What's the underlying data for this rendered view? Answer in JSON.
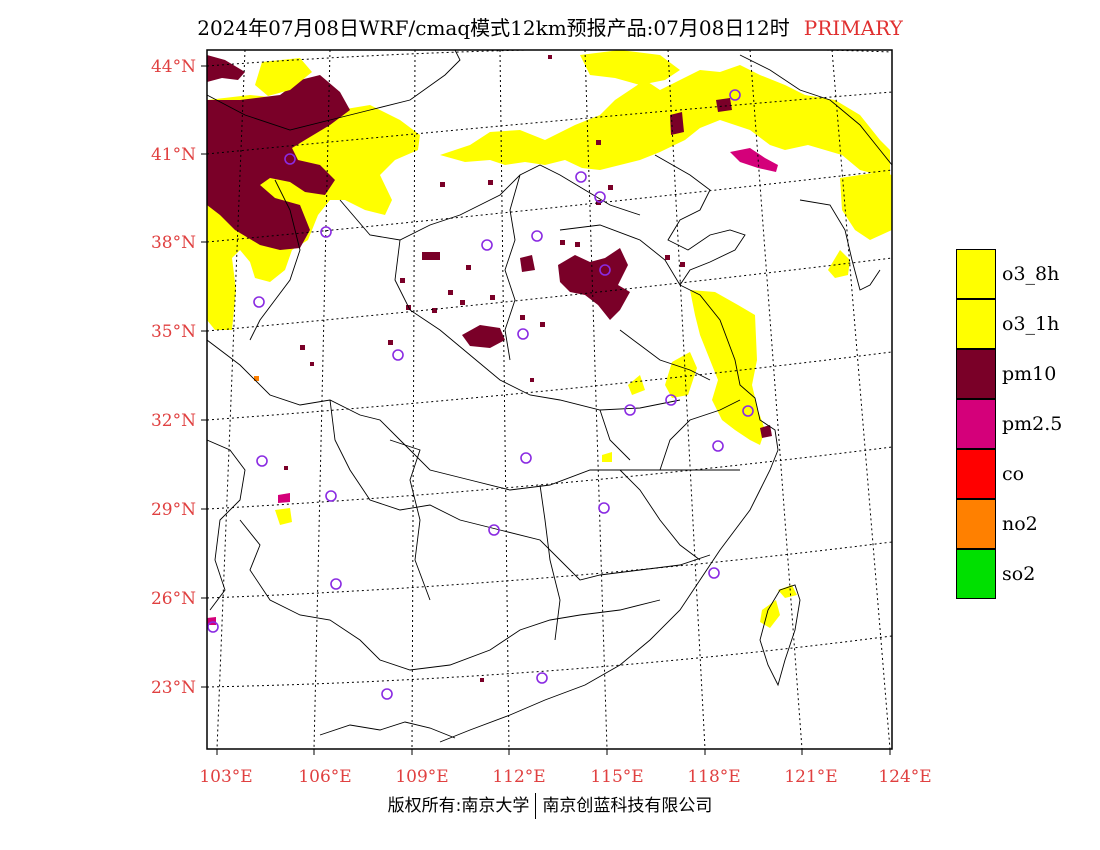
{
  "header": {
    "title": "2024年07月08日WRF/cmaq模式12km预报产品:07月08日12时",
    "product_tag": "PRIMARY",
    "product_tag_color": "#e03030"
  },
  "map": {
    "lat_labels": [
      "44°N",
      "41°N",
      "38°N",
      "35°N",
      "32°N",
      "29°N",
      "26°N",
      "23°N"
    ],
    "lon_labels": [
      "103°E",
      "106°E",
      "109°E",
      "112°E",
      "115°E",
      "118°E",
      "121°E",
      "124°E"
    ],
    "lon_range": [
      103,
      124
    ],
    "lat_range": [
      21,
      44.5
    ],
    "station_marker_color": "#8a2be2"
  },
  "legend": {
    "items": [
      {
        "label": "o3_8h",
        "color": "#ffff00"
      },
      {
        "label": "o3_1h",
        "color": "#ffff00"
      },
      {
        "label": "pm10",
        "color": "#7a0028"
      },
      {
        "label": "pm2.5",
        "color": "#d4007a"
      },
      {
        "label": "co",
        "color": "#ff0000"
      },
      {
        "label": "no2",
        "color": "#ff8000"
      },
      {
        "label": "so2",
        "color": "#00e000"
      }
    ]
  },
  "footer": {
    "copyright_left": "版权所有:南京大学",
    "copyright_right": "南京创蓝科技有限公司"
  }
}
